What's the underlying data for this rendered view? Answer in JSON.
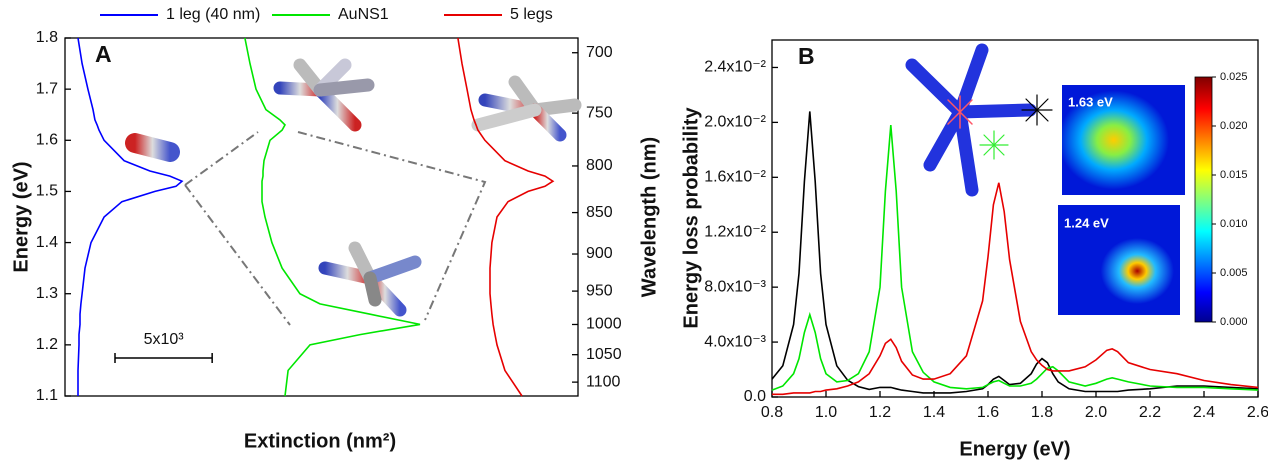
{
  "chart_data": [
    {
      "type": "line",
      "panel_label": "A",
      "xlabel": "Extinction (nm²)",
      "ylabel": "Energy (eV)",
      "y2label": "Wavelength (nm)",
      "y": [
        1.1,
        1.15,
        1.2,
        1.22,
        1.24,
        1.26,
        1.28,
        1.3,
        1.35,
        1.4,
        1.45,
        1.48,
        1.5,
        1.51,
        1.52,
        1.53,
        1.54,
        1.56,
        1.6,
        1.62,
        1.63,
        1.64,
        1.66,
        1.7,
        1.75,
        1.8
      ],
      "series": [
        {
          "name": "1 leg (40 nm)",
          "color": "#0000ff",
          "values": [
            670,
            670,
            720,
            720,
            770,
            770,
            820,
            880,
            1030,
            1340,
            2010,
            2930,
            4630,
            5710,
            6020,
            5400,
            4370,
            3040,
            2010,
            1750,
            1650,
            1540,
            1440,
            1180,
            880,
            670
          ]
        },
        {
          "name": "AuNS1",
          "color": "#00e600",
          "values": [
            11320,
            11480,
            12610,
            15180,
            18270,
            15700,
            13120,
            12090,
            11170,
            10650,
            10290,
            10140,
            10140,
            10140,
            10140,
            10190,
            10190,
            10240,
            10550,
            11170,
            11320,
            11060,
            10340,
            9830,
            9520,
            9260
          ]
        },
        {
          "name": "5 legs",
          "color": "#e60000",
          "values": [
            23520,
            22640,
            22230,
            22130,
            22030,
            21970,
            21920,
            21870,
            21870,
            21970,
            22230,
            22800,
            23830,
            24700,
            25110,
            24700,
            23830,
            22640,
            21610,
            21250,
            21150,
            21050,
            20890,
            20690,
            20430,
            20220
          ]
        }
      ],
      "xlim": [
        0,
        26400
      ],
      "ylim": [
        1.1,
        1.8
      ],
      "yticks": [
        1.1,
        1.2,
        1.3,
        1.4,
        1.5,
        1.6,
        1.7,
        1.8
      ],
      "y2ticks": [
        700,
        750,
        800,
        850,
        900,
        950,
        1000,
        1050,
        1100
      ],
      "scale_bar": {
        "value": 5000,
        "label": "5x10³"
      },
      "legend": "top"
    },
    {
      "type": "line",
      "panel_label": "B",
      "xlabel": "Energy (eV)",
      "ylabel": "Energy loss probability",
      "x": [
        0.8,
        0.84,
        0.88,
        0.9,
        0.92,
        0.94,
        0.96,
        0.98,
        1.0,
        1.04,
        1.08,
        1.12,
        1.16,
        1.2,
        1.22,
        1.24,
        1.26,
        1.28,
        1.32,
        1.36,
        1.4,
        1.46,
        1.52,
        1.58,
        1.6,
        1.62,
        1.64,
        1.66,
        1.68,
        1.72,
        1.76,
        1.78,
        1.8,
        1.82,
        1.84,
        1.86,
        1.9,
        1.96,
        2.0,
        2.04,
        2.06,
        2.08,
        2.12,
        2.2,
        2.3,
        2.4,
        2.5,
        2.6
      ],
      "series": [
        {
          "color": "#000000",
          "values": [
            0.0013,
            0.00227,
            0.00528,
            0.009,
            0.0157,
            0.0208,
            0.0157,
            0.009,
            0.00528,
            0.00227,
            0.00122,
            0.00076,
            0.00055,
            0.0007,
            0.0007,
            0.0007,
            0.0006,
            0.0005,
            0.0004,
            0.0003,
            0.0003,
            0.0003,
            0.0004,
            0.0006,
            0.0009,
            0.0013,
            0.0015,
            0.0012,
            0.0009,
            0.001,
            0.0017,
            0.0024,
            0.0028,
            0.0025,
            0.0017,
            0.0011,
            0.0006,
            0.0004,
            0.0004,
            0.0004,
            0.0004,
            0.0004,
            0.0005,
            0.0006,
            0.0008,
            0.0008,
            0.0007,
            0.0006
          ]
        },
        {
          "color": "#00e600",
          "values": [
            0.0005,
            0.0008,
            0.0017,
            0.0028,
            0.0047,
            0.006,
            0.0047,
            0.0028,
            0.0017,
            0.0011,
            0.0012,
            0.0017,
            0.0033,
            0.008,
            0.015,
            0.0198,
            0.015,
            0.008,
            0.0033,
            0.0018,
            0.0011,
            0.0007,
            0.0006,
            0.0007,
            0.0009,
            0.0011,
            0.0012,
            0.001,
            0.0008,
            0.0008,
            0.001,
            0.0013,
            0.0017,
            0.0021,
            0.0022,
            0.0019,
            0.0011,
            0.0008,
            0.001,
            0.0013,
            0.0014,
            0.0013,
            0.0011,
            0.0008,
            0.0007,
            0.0007,
            0.0006,
            0.0005
          ]
        },
        {
          "color": "#e60000",
          "values": [
            0.0002,
            0.0002,
            0.0003,
            0.0003,
            0.0003,
            0.0003,
            0.0004,
            0.0004,
            0.0005,
            0.0006,
            0.0008,
            0.0011,
            0.0017,
            0.003,
            0.0039,
            0.0042,
            0.0036,
            0.0026,
            0.0016,
            0.0013,
            0.0013,
            0.0017,
            0.003,
            0.007,
            0.0102,
            0.014,
            0.0156,
            0.0135,
            0.01,
            0.0055,
            0.0033,
            0.0027,
            0.0023,
            0.002,
            0.0019,
            0.0019,
            0.0019,
            0.0022,
            0.0027,
            0.0034,
            0.0035,
            0.0033,
            0.0025,
            0.002,
            0.0017,
            0.0012,
            0.0009,
            0.0007
          ]
        }
      ],
      "xlim": [
        0.8,
        2.6
      ],
      "xticks": [
        0.8,
        {
          "value": 1,
          "label": "1.0"
        },
        1.2,
        1.4,
        1.6,
        1.8,
        {
          "value": 2,
          "label": "2.0"
        },
        2.2,
        2.4,
        2.6
      ],
      "ylim": [
        0,
        0.026
      ],
      "yticks": [
        {
          "value": 0,
          "label": "0.0"
        },
        {
          "value": 0.004,
          "label": "4.0x10⁻³"
        },
        {
          "value": 0.008,
          "label": "8.0x10⁻³"
        },
        {
          "value": 0.012,
          "label": "1.2x10⁻²"
        },
        {
          "value": 0.016,
          "label": "1.6x10⁻²"
        },
        {
          "value": 0.02,
          "label": "2.0x10⁻²"
        },
        {
          "value": 0.024,
          "label": "2.4x10⁻²"
        }
      ],
      "annotations": [
        "1.63 eV",
        "1.24 eV"
      ],
      "colorbar": {
        "lim": [
          0,
          0.025
        ],
        "ticks": [
          {
            "value": 0,
            "label": "0.000"
          },
          {
            "value": 0.005,
            "label": "0.005"
          },
          {
            "value": 0.01,
            "label": "0.010"
          },
          {
            "value": 0.015,
            "label": "0.015"
          },
          {
            "value": 0.02,
            "label": "0.020"
          },
          {
            "value": 0.025,
            "label": "0.025"
          }
        ]
      }
    }
  ]
}
